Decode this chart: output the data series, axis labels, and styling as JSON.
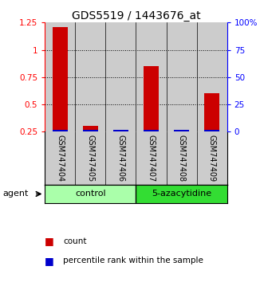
{
  "title": "GDS5519 / 1443676_at",
  "samples": [
    "GSM747404",
    "GSM747405",
    "GSM747406",
    "GSM747407",
    "GSM747408",
    "GSM747409"
  ],
  "count_values": [
    1.21,
    0.3,
    0.0,
    0.85,
    0.0,
    0.6
  ],
  "percentile_values": [
    0.27,
    0.27,
    0.27,
    0.27,
    0.27,
    0.27
  ],
  "ylim_left": [
    0.25,
    1.25
  ],
  "ylim_right": [
    0,
    100
  ],
  "yticks_left": [
    0.25,
    0.5,
    0.75,
    1.0,
    1.25
  ],
  "ytick_labels_left": [
    "0.25",
    "0.5",
    "0.75",
    "1",
    "1.25"
  ],
  "yticks_right": [
    0,
    25,
    50,
    75,
    100
  ],
  "ytick_labels_right": [
    "0",
    "25",
    "50",
    "75",
    "100%"
  ],
  "dotted_lines": [
    0.5,
    0.75,
    1.0
  ],
  "groups": [
    {
      "label": "control",
      "indices": [
        0,
        1,
        2
      ],
      "color": "#aaffaa"
    },
    {
      "label": "5-azacytidine",
      "indices": [
        3,
        4,
        5
      ],
      "color": "#33dd33"
    }
  ],
  "count_color": "#cc0000",
  "percentile_color": "#0000cc",
  "bar_bgcolor": "#cccccc",
  "agent_label": "agent",
  "legend_count": "count",
  "legend_percentile": "percentile rank within the sample",
  "title_fontsize": 10,
  "tick_label_fontsize": 7.5,
  "axis_label_fontsize": 8,
  "bar_width": 0.5
}
